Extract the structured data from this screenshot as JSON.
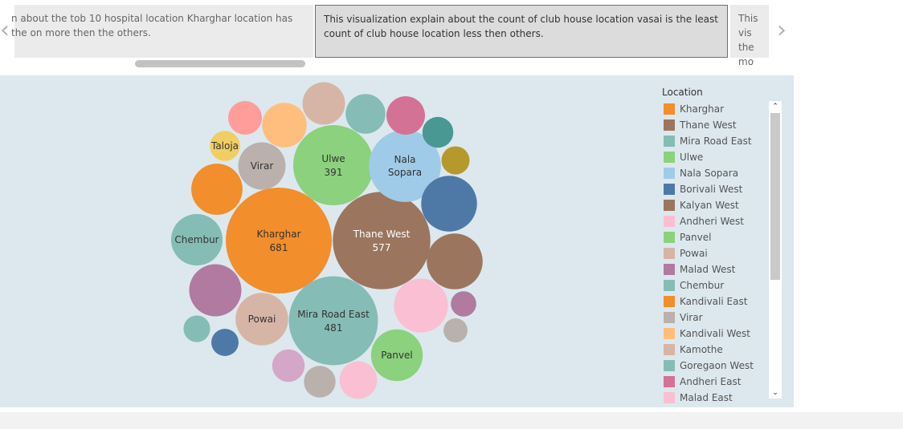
{
  "story": {
    "nav_prev_glyph": "‹",
    "nav_next_glyph": "›",
    "points": [
      "n about the tob 10 hospital location Kharghar location has the on more then the others.",
      "This visualization explain about the count of club house location vasai is the least count of club house location less then others.",
      "This vis the mo"
    ]
  },
  "legend": {
    "title": "Location",
    "scroll_up_glyph": "⌃",
    "scroll_down_glyph": "⌄",
    "items": [
      {
        "label": "Kharghar",
        "color": "#f28e2b"
      },
      {
        "label": "Thane West",
        "color": "#9c755f"
      },
      {
        "label": "Mira Road East",
        "color": "#86bcb6"
      },
      {
        "label": "Ulwe",
        "color": "#8cd17d"
      },
      {
        "label": "Nala Sopara",
        "color": "#a0cbe8"
      },
      {
        "label": "Borivali West",
        "color": "#4e79a7"
      },
      {
        "label": "Kalyan West",
        "color": "#9c755f"
      },
      {
        "label": "Andheri West",
        "color": "#fabfd2"
      },
      {
        "label": "Panvel",
        "color": "#8cd17d"
      },
      {
        "label": "Powai",
        "color": "#d7b5a6"
      },
      {
        "label": "Malad West",
        "color": "#b07aa1"
      },
      {
        "label": "Chembur",
        "color": "#86bcb6"
      },
      {
        "label": "Kandivali East",
        "color": "#f28e2b"
      },
      {
        "label": "Virar",
        "color": "#bab0ac"
      },
      {
        "label": "Kandivali West",
        "color": "#ffbe7d"
      },
      {
        "label": "Kamothe",
        "color": "#d7b5a6"
      },
      {
        "label": "Goregaon West",
        "color": "#86bcb6"
      },
      {
        "label": "Andheri East",
        "color": "#d37295"
      },
      {
        "label": "Malad East",
        "color": "#fabfd2"
      }
    ]
  },
  "chart_data": {
    "type": "bubble",
    "measure": "count",
    "bubbles": [
      {
        "label": "Kharghar",
        "value": 681,
        "show_label": true,
        "show_value": true,
        "color": "#f28e2b",
        "text_color": "#333333"
      },
      {
        "label": "Thane West",
        "value": 577,
        "show_label": true,
        "show_value": true,
        "color": "#9c755f",
        "text_color": "#ffffff"
      },
      {
        "label": "Mira Road East",
        "value": 481,
        "show_label": true,
        "show_value": true,
        "color": "#86bcb6",
        "text_color": "#333333"
      },
      {
        "label": "Ulwe",
        "value": 391,
        "show_label": true,
        "show_value": true,
        "color": "#8cd17d",
        "text_color": "#333333"
      },
      {
        "label": "Nala Sopara",
        "value": 314,
        "show_label": true,
        "show_value": false,
        "color": "#a0cbe8",
        "text_color": "#333333"
      },
      {
        "label": "Borivali West",
        "value": 189,
        "show_label": false,
        "show_value": false,
        "color": "#4e79a7",
        "text_color": "#ffffff"
      },
      {
        "label": "Kalyan West",
        "value": 189,
        "show_label": false,
        "show_value": false,
        "color": "#9c755f",
        "text_color": "#ffffff"
      },
      {
        "label": "Andheri West",
        "value": 177,
        "show_label": false,
        "show_value": false,
        "color": "#fabfd2",
        "text_color": "#333333"
      },
      {
        "label": "Panvel",
        "value": 162,
        "show_label": true,
        "show_value": false,
        "color": "#8cd17d",
        "text_color": "#333333"
      },
      {
        "label": "Powai",
        "value": 168,
        "show_label": true,
        "show_value": false,
        "color": "#d7b5a6",
        "text_color": "#333333"
      },
      {
        "label": "Malad West",
        "value": 165,
        "show_label": false,
        "show_value": false,
        "color": "#b07aa1",
        "text_color": "#333333"
      },
      {
        "label": "Chembur",
        "value": 161,
        "show_label": true,
        "show_value": false,
        "color": "#86bcb6",
        "text_color": "#333333"
      },
      {
        "label": "Kandivali East",
        "value": 159,
        "show_label": false,
        "show_value": false,
        "color": "#f28e2b",
        "text_color": "#333333"
      },
      {
        "label": "Virar",
        "value": 136,
        "show_label": true,
        "show_value": false,
        "color": "#bab0ac",
        "text_color": "#333333"
      },
      {
        "label": "Kandivali West",
        "value": 120,
        "show_label": false,
        "show_value": false,
        "color": "#ffbe7d",
        "text_color": "#333333"
      },
      {
        "label": "Kamothe",
        "value": 110,
        "show_label": false,
        "show_value": false,
        "color": "#d7b5a6",
        "text_color": "#333333"
      },
      {
        "label": "Goregaon West",
        "value": 96,
        "show_label": false,
        "show_value": false,
        "color": "#86bcb6",
        "text_color": "#333333"
      },
      {
        "label": "Andheri East",
        "value": 90,
        "show_label": false,
        "show_value": false,
        "color": "#d37295",
        "text_color": "#333333"
      },
      {
        "label": "Malad East",
        "value": 86,
        "show_label": false,
        "show_value": false,
        "color": "#fabfd2",
        "text_color": "#333333"
      },
      {
        "label": "",
        "value": 69,
        "show_label": false,
        "show_value": false,
        "color": "#ff9d9a",
        "text_color": "#333333"
      },
      {
        "label": "",
        "value": 64,
        "show_label": false,
        "show_value": false,
        "color": "#d4a6c8",
        "text_color": "#333333"
      },
      {
        "label": "",
        "value": 61,
        "show_label": false,
        "show_value": false,
        "color": "#bab0ac",
        "text_color": "#333333"
      },
      {
        "label": "",
        "value": 58,
        "show_label": false,
        "show_value": false,
        "color": "#499894",
        "text_color": "#333333"
      },
      {
        "label": "Taloja",
        "value": 55,
        "show_label": true,
        "show_value": false,
        "color": "#f1ce63",
        "text_color": "#333333"
      },
      {
        "label": "",
        "value": 48,
        "show_label": false,
        "show_value": false,
        "color": "#b6992d",
        "text_color": "#333333"
      },
      {
        "label": "",
        "value": 45,
        "show_label": false,
        "show_value": false,
        "color": "#4e79a7",
        "text_color": "#333333"
      },
      {
        "label": "",
        "value": 43,
        "show_label": false,
        "show_value": false,
        "color": "#86bcb6",
        "text_color": "#333333"
      },
      {
        "label": "",
        "value": 39,
        "show_label": false,
        "show_value": false,
        "color": "#b07aa1",
        "text_color": "#333333"
      },
      {
        "label": "",
        "value": 35,
        "show_label": false,
        "show_value": false,
        "color": "#bab0ac",
        "text_color": "#333333"
      }
    ]
  }
}
